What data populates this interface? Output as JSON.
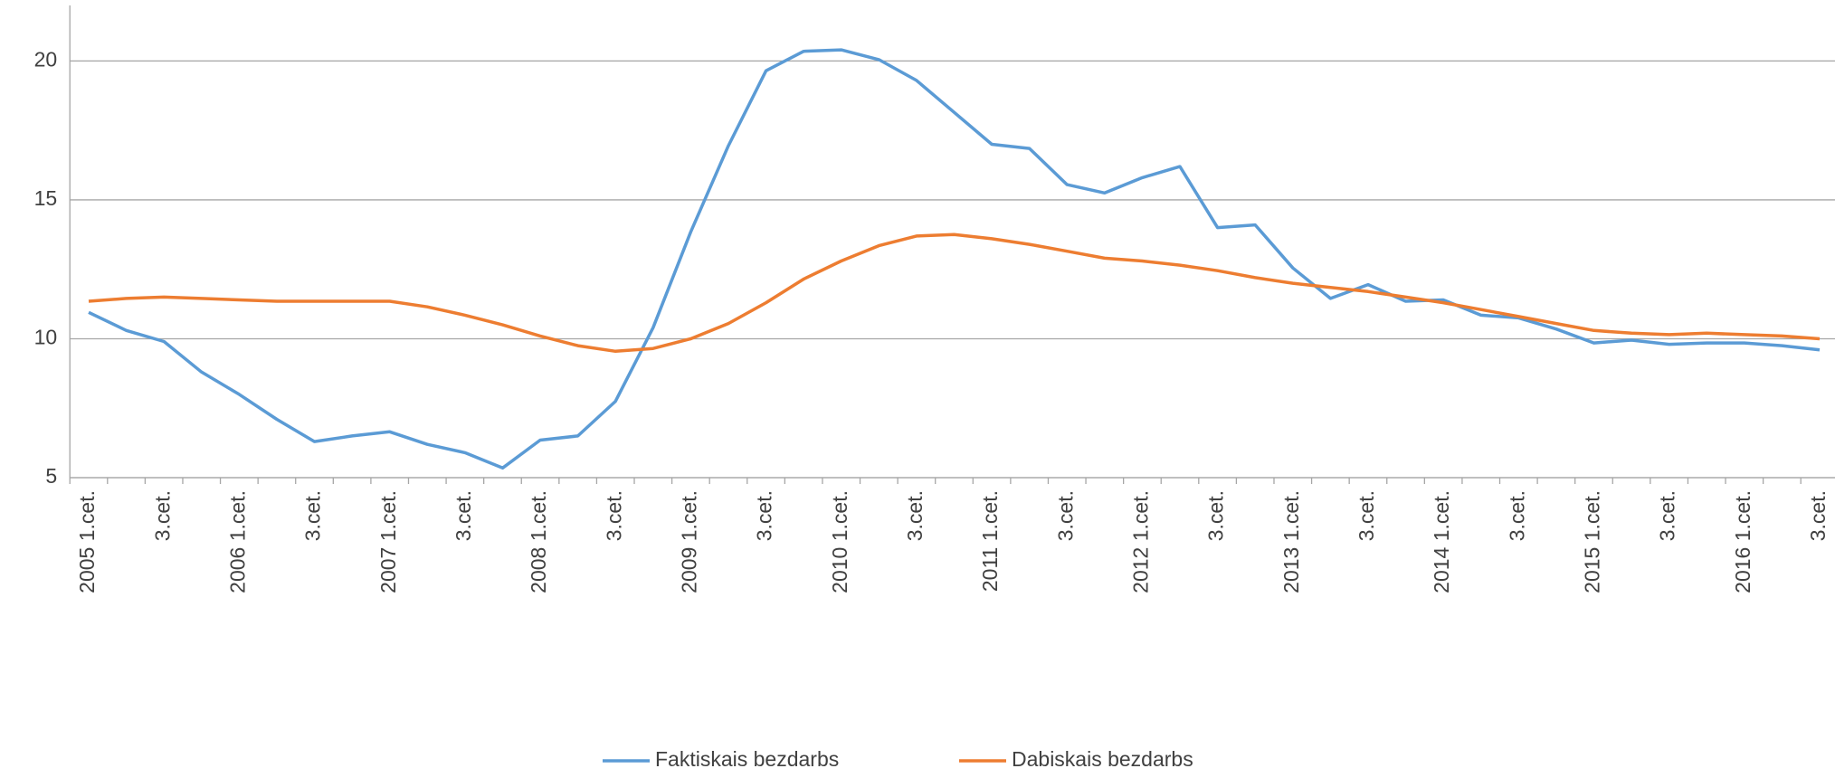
{
  "chart_data": {
    "type": "line",
    "categories": [
      "2005 1.cet.",
      null,
      "3.cet.",
      null,
      "2006 1.cet.",
      null,
      "3.cet.",
      null,
      "2007 1.cet.",
      null,
      "3.cet.",
      null,
      "2008 1.cet.",
      null,
      "3.cet.",
      null,
      "2009 1.cet.",
      null,
      "3.cet.",
      null,
      "2010 1.cet.",
      null,
      "3.cet.",
      null,
      "2011 1.cet.",
      null,
      "3.cet.",
      null,
      "2012 1.cet.",
      null,
      "3.cet.",
      null,
      "2013 1.cet.",
      null,
      "3.cet.",
      null,
      "2014 1.cet.",
      null,
      "3.cet.",
      null,
      "2015 1.cet.",
      null,
      "3.cet.",
      null,
      "2016 1.cet.",
      null,
      "3.cet."
    ],
    "series": [
      {
        "name": "Faktiskais bezdarbs",
        "color": "#5b9bd5",
        "values": [
          10.95,
          10.3,
          9.9,
          8.8,
          8.0,
          7.1,
          6.3,
          6.5,
          6.65,
          6.2,
          5.9,
          5.35,
          6.35,
          6.5,
          7.75,
          10.4,
          13.85,
          16.95,
          19.65,
          20.35,
          20.4,
          20.05,
          19.3,
          18.15,
          17.0,
          16.85,
          15.55,
          15.25,
          15.8,
          16.2,
          14.0,
          14.1,
          12.55,
          11.45,
          11.95,
          11.35,
          11.4,
          10.85,
          10.75,
          10.35,
          9.85,
          9.95,
          9.8,
          9.85,
          9.85,
          9.75,
          9.6
        ]
      },
      {
        "name": "Dabiskais bezdarbs",
        "color": "#ed7d31",
        "values": [
          11.35,
          11.45,
          11.5,
          11.45,
          11.4,
          11.35,
          11.35,
          11.35,
          11.35,
          11.15,
          10.85,
          10.5,
          10.1,
          9.75,
          9.55,
          9.65,
          10.0,
          10.55,
          11.3,
          12.15,
          12.8,
          13.35,
          13.7,
          13.75,
          13.6,
          13.4,
          13.15,
          12.9,
          12.8,
          12.65,
          12.45,
          12.2,
          12.0,
          11.85,
          11.7,
          11.5,
          11.3,
          11.05,
          10.8,
          10.55,
          10.3,
          10.2,
          10.15,
          10.2,
          10.15,
          10.1,
          10.0
        ]
      }
    ],
    "ylim": [
      5,
      22
    ],
    "yticks": [
      5,
      10,
      15,
      20
    ],
    "grid": true
  }
}
